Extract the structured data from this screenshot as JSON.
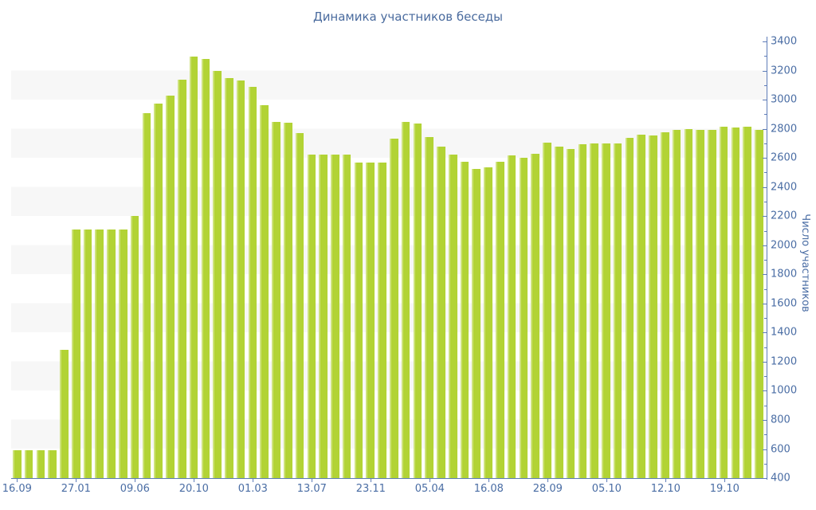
{
  "title": "Динамика участников беседы",
  "colors": {
    "bar": "#b2d335",
    "bar_highlight": "#cde27a",
    "axis_line": "#5e7cb8",
    "text": "#4a6da4",
    "title_text": "#4a6b9e",
    "stripe": "#f7f7f7",
    "background": "#ffffff"
  },
  "chart_data": {
    "type": "bar",
    "title": "Динамика участников беседы",
    "xlabel": "",
    "ylabel": "Число участников",
    "ylim": [
      400,
      3400
    ],
    "y_major_step": 200,
    "y_minor_step": 100,
    "grid": "horizontal-stripes",
    "legend": "none",
    "y_ticks": [
      3400,
      3200,
      3000,
      2800,
      2600,
      2400,
      2200,
      2000,
      1800,
      1600,
      1400,
      1200,
      1000,
      800,
      600,
      400
    ],
    "x_tick_labels": [
      "16.09",
      "27.01",
      "09.06",
      "20.10",
      "01.03",
      "13.07",
      "23.11",
      "05.04",
      "16.08",
      "28.09",
      "05.10",
      "12.10",
      "19.10"
    ],
    "x_label_every_n_bars": 5,
    "values": [
      590,
      590,
      590,
      590,
      1280,
      2110,
      2110,
      2110,
      2110,
      2110,
      2200,
      2910,
      2975,
      3030,
      3140,
      3295,
      3280,
      3195,
      3150,
      3130,
      3090,
      2960,
      2845,
      2840,
      2770,
      2625,
      2625,
      2625,
      2625,
      2570,
      2570,
      2570,
      2730,
      2845,
      2835,
      2745,
      2680,
      2625,
      2575,
      2525,
      2535,
      2575,
      2615,
      2600,
      2630,
      2705,
      2675,
      2660,
      2695,
      2700,
      2700,
      2700,
      2740,
      2760,
      2755,
      2775,
      2790,
      2800,
      2795,
      2795,
      2815,
      2810,
      2815,
      2790
    ]
  }
}
